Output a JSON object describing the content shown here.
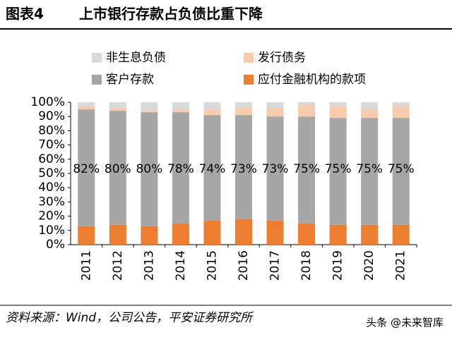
{
  "chart_data": {
    "type": "stacked_bar",
    "figure_label": "图表4",
    "title": "上市银行存款占负债比重下降",
    "source": "资料来源：Wind，公司公告，平安证券研究所",
    "watermark": "头条 @未来智库",
    "categories": [
      "2011",
      "2012",
      "2013",
      "2014",
      "2015",
      "2016",
      "2017",
      "2018",
      "2019",
      "2020",
      "2021"
    ],
    "series": [
      {
        "name": "应付金融机构的款项",
        "color": "#ED7D31",
        "values": [
          13,
          14,
          13,
          15,
          17,
          18,
          17,
          15,
          14,
          14,
          14
        ]
      },
      {
        "name": "客户存款",
        "color": "#A6A6A6",
        "values": [
          82,
          80,
          80,
          78,
          74,
          73,
          73,
          75,
          75,
          75,
          75
        ],
        "value_labels": [
          "82%",
          "80%",
          "80%",
          "78%",
          "74%",
          "73%",
          "73%",
          "75%",
          "75%",
          "75%",
          "75%"
        ]
      },
      {
        "name": "发行债务",
        "color": "#F8CBAD",
        "values": [
          2,
          2,
          1,
          2,
          4,
          5,
          6,
          8,
          8,
          6,
          8
        ]
      },
      {
        "name": "非生息负债",
        "color": "#D9D9D9",
        "values": [
          3,
          4,
          6,
          5,
          5,
          4,
          4,
          2,
          3,
          5,
          3
        ]
      }
    ],
    "ylim": [
      0,
      100
    ],
    "yticks": [
      {
        "value": 0,
        "label": "0%"
      },
      {
        "value": 10,
        "label": "10%"
      },
      {
        "value": 20,
        "label": "20%"
      },
      {
        "value": 30,
        "label": "30%"
      },
      {
        "value": 40,
        "label": "40%"
      },
      {
        "value": 50,
        "label": "50%"
      },
      {
        "value": 60,
        "label": "60%"
      },
      {
        "value": 70,
        "label": "70%"
      },
      {
        "value": 80,
        "label": "80%"
      },
      {
        "value": 90,
        "label": "90%"
      },
      {
        "value": 100,
        "label": "100%"
      }
    ],
    "grid": false
  }
}
